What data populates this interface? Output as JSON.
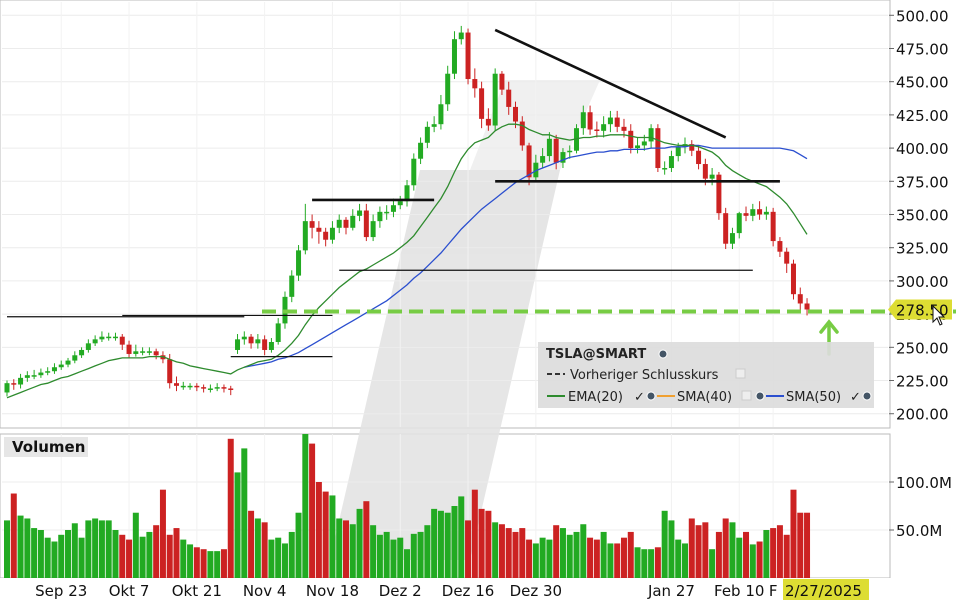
{
  "chart_data": {
    "type": "candlestick",
    "ticker_label": "TSLA@SMART",
    "price_axis": {
      "ylim": [
        190,
        510
      ],
      "ticks": [
        "500.00",
        "475.00",
        "450.00",
        "425.00",
        "400.00",
        "375.00",
        "350.00",
        "325.00",
        "300.00",
        "275.00",
        "250.00",
        "225.00",
        "200.00"
      ],
      "tick_values": [
        500,
        475,
        450,
        425,
        400,
        375,
        350,
        325,
        300,
        275,
        250,
        225,
        200
      ],
      "last_price_label": "278.50",
      "last_price": 278.5
    },
    "volume_axis": {
      "title": "Volumen",
      "ylim": [
        0,
        150
      ],
      "ticks": [
        "100.0M",
        "50.0M"
      ],
      "tick_values": [
        100,
        50
      ]
    },
    "x_axis": {
      "tick_labels": [
        "Sep 23",
        "Okt 7",
        "Okt 21",
        "Nov 4",
        "Nov 18",
        "Dez 2",
        "Dez 16",
        "Dez 30",
        "Jan 27",
        "Feb 10",
        "F"
      ],
      "tick_index": [
        8,
        18,
        28,
        38,
        48,
        58,
        68,
        78,
        98,
        108,
        113
      ],
      "current_date": "2/27/2025"
    },
    "legend": {
      "title": "TSLA@SMART",
      "items": [
        {
          "label": "Vorheriger Schlusskurs",
          "color": "#333333",
          "style": "dashed"
        },
        {
          "label": "EMA(20)",
          "color": "#2e8b2e",
          "style": "solid"
        },
        {
          "label": "SMA(40)",
          "color": "#f0a030",
          "style": "solid"
        },
        {
          "label": "SMA(50)",
          "color": "#2b4fcf",
          "style": "solid"
        }
      ]
    },
    "colors": {
      "up": "#22aa22",
      "down": "#cc2222",
      "previous_close_line": "#77cc44",
      "arrow": "#77cc44",
      "badge": "#dddd33"
    },
    "candles": {
      "open": [
        216,
        223,
        222,
        227,
        229,
        229,
        231,
        232,
        235,
        237,
        240,
        244,
        248,
        253,
        256,
        258,
        258,
        258,
        252,
        245,
        247,
        247,
        247,
        244,
        241,
        223,
        221,
        221,
        221,
        220,
        219,
        219,
        220,
        219,
        248,
        256,
        258,
        253,
        256,
        248,
        254,
        268,
        288,
        304,
        323,
        345,
        340,
        337,
        331,
        340,
        346,
        340,
        349,
        353,
        333,
        345,
        352,
        352,
        357,
        360,
        372,
        392,
        404,
        416,
        418,
        433,
        456,
        482,
        487,
        452,
        445,
        422,
        417,
        456,
        444,
        431,
        420,
        402,
        378,
        389,
        394,
        407,
        389,
        397,
        398,
        415,
        427,
        414,
        413,
        418,
        423,
        416,
        413,
        400,
        402,
        405,
        415,
        385,
        385,
        394,
        401,
        403,
        398,
        388,
        377,
        380,
        351,
        328,
        336,
        351,
        349,
        354,
        350,
        352,
        330,
        322,
        313,
        290,
        283
      ],
      "close": [
        223,
        222,
        227,
        229,
        229,
        231,
        232,
        235,
        237,
        240,
        244,
        248,
        253,
        256,
        258,
        258,
        258,
        252,
        245,
        247,
        247,
        247,
        244,
        241,
        223,
        221,
        221,
        221,
        220,
        219,
        219,
        220,
        219,
        218,
        256,
        258,
        253,
        256,
        248,
        254,
        268,
        288,
        304,
        323,
        345,
        340,
        337,
        331,
        340,
        346,
        340,
        349,
        353,
        333,
        345,
        352,
        352,
        357,
        360,
        372,
        392,
        404,
        416,
        418,
        433,
        456,
        482,
        487,
        452,
        445,
        422,
        417,
        456,
        444,
        431,
        420,
        402,
        378,
        389,
        394,
        407,
        389,
        397,
        398,
        415,
        427,
        414,
        413,
        418,
        423,
        416,
        413,
        400,
        402,
        405,
        415,
        385,
        385,
        394,
        401,
        403,
        398,
        388,
        377,
        380,
        351,
        328,
        336,
        351,
        349,
        354,
        350,
        352,
        330,
        322,
        313,
        290,
        283,
        278.5
      ],
      "high": [
        225,
        226,
        230,
        232,
        233,
        234,
        235,
        238,
        240,
        242,
        247,
        250,
        256,
        259,
        262,
        261,
        261,
        260,
        255,
        252,
        250,
        250,
        249,
        247,
        245,
        228,
        224,
        223,
        223,
        222,
        222,
        223,
        222,
        221,
        260,
        262,
        260,
        260,
        259,
        257,
        272,
        292,
        308,
        327,
        358,
        350,
        345,
        340,
        345,
        350,
        348,
        354,
        358,
        358,
        350,
        356,
        357,
        362,
        364,
        376,
        396,
        408,
        420,
        424,
        440,
        462,
        488,
        492,
        490,
        460,
        450,
        430,
        460,
        458,
        450,
        435,
        424,
        404,
        395,
        400,
        412,
        410,
        400,
        402,
        418,
        432,
        432,
        420,
        424,
        428,
        428,
        422,
        418,
        408,
        410,
        418,
        418,
        390,
        398,
        404,
        408,
        406,
        402,
        392,
        385,
        382,
        355,
        340,
        352,
        356,
        358,
        360,
        356,
        355,
        333,
        325,
        316,
        295,
        287
      ],
      "low": [
        213,
        218,
        219,
        224,
        226,
        227,
        229,
        230,
        233,
        235,
        238,
        242,
        246,
        251,
        254,
        255,
        255,
        248,
        242,
        243,
        244,
        244,
        241,
        238,
        219,
        217,
        218,
        218,
        217,
        216,
        216,
        217,
        216,
        214,
        245,
        252,
        249,
        249,
        244,
        246,
        252,
        264,
        284,
        300,
        320,
        332,
        328,
        326,
        328,
        336,
        335,
        338,
        345,
        330,
        330,
        340,
        346,
        348,
        354,
        356,
        368,
        388,
        400,
        412,
        414,
        428,
        452,
        478,
        448,
        438,
        415,
        413,
        413,
        440,
        425,
        415,
        398,
        372,
        376,
        385,
        390,
        384,
        385,
        392,
        396,
        410,
        410,
        408,
        408,
        412,
        412,
        408,
        396,
        396,
        398,
        400,
        382,
        380,
        382,
        390,
        396,
        394,
        384,
        372,
        372,
        346,
        324,
        324,
        332,
        345,
        345,
        346,
        346,
        326,
        318,
        306,
        286,
        278,
        274
      ]
    },
    "volume": [
      60,
      88,
      65,
      62,
      52,
      50,
      42,
      38,
      45,
      50,
      57,
      42,
      60,
      62,
      60,
      60,
      50,
      45,
      40,
      68,
      43,
      48,
      55,
      92,
      45,
      52,
      40,
      35,
      32,
      30,
      28,
      28,
      30,
      145,
      110,
      135,
      70,
      62,
      58,
      40,
      42,
      36,
      48,
      68,
      150,
      140,
      100,
      90,
      86,
      62,
      60,
      56,
      72,
      80,
      55,
      45,
      48,
      40,
      42,
      30,
      46,
      48,
      55,
      72,
      70,
      68,
      75,
      85,
      60,
      92,
      72,
      70,
      58,
      56,
      52,
      48,
      52,
      40,
      36,
      42,
      40,
      55,
      52,
      45,
      48,
      56,
      42,
      40,
      48,
      36,
      36,
      42,
      48,
      32,
      30,
      30,
      32,
      70,
      60,
      40,
      36,
      62,
      55,
      58,
      30,
      48,
      62,
      58,
      42,
      48,
      35,
      38,
      50,
      52,
      55,
      45,
      92,
      68,
      68
    ],
    "ema20": [
      212,
      214,
      216,
      218,
      220,
      222,
      223,
      225,
      227,
      228,
      230,
      232,
      234,
      236,
      238,
      240,
      241,
      242,
      242,
      242,
      242,
      243,
      243,
      243,
      241,
      239,
      238,
      236,
      235,
      234,
      233,
      232,
      231,
      230,
      233,
      235,
      237,
      239,
      240,
      241,
      244,
      248,
      253,
      259,
      267,
      274,
      280,
      285,
      290,
      295,
      299,
      303,
      307,
      309,
      312,
      315,
      318,
      321,
      325,
      329,
      334,
      341,
      348,
      355,
      362,
      371,
      382,
      392,
      399,
      404,
      406,
      408,
      413,
      416,
      418,
      418,
      417,
      414,
      412,
      410,
      410,
      408,
      407,
      406,
      407,
      408,
      408,
      409,
      409,
      410,
      410,
      410,
      409,
      408,
      408,
      408,
      406,
      404,
      403,
      402,
      402,
      402,
      401,
      399,
      397,
      393,
      387,
      383,
      380,
      377,
      375,
      373,
      371,
      367,
      363,
      358,
      351,
      343,
      335
    ],
    "sma50": [
      null,
      null,
      null,
      null,
      null,
      null,
      null,
      null,
      null,
      null,
      null,
      null,
      null,
      null,
      null,
      null,
      null,
      null,
      null,
      null,
      null,
      null,
      null,
      null,
      null,
      null,
      null,
      null,
      null,
      null,
      null,
      null,
      null,
      null,
      null,
      235,
      236,
      237,
      238,
      239,
      241,
      242,
      244,
      246,
      249,
      252,
      255,
      258,
      261,
      264,
      267,
      270,
      273,
      276,
      279,
      282,
      285,
      289,
      293,
      297,
      302,
      306,
      311,
      316,
      321,
      327,
      333,
      339,
      344,
      349,
      354,
      358,
      362,
      366,
      370,
      374,
      377,
      380,
      383,
      385,
      387,
      389,
      391,
      393,
      394,
      395,
      396,
      397,
      397,
      398,
      398,
      399,
      399,
      399,
      399,
      400,
      400,
      400,
      401,
      401,
      401,
      402,
      402,
      401,
      400,
      400,
      400,
      400,
      400,
      400,
      400,
      400,
      400,
      400,
      400,
      399,
      398,
      395,
      392
    ],
    "previous_close": 277,
    "annotations": {
      "trendlines": [
        {
          "from": [
            72,
            489
          ],
          "to": [
            106,
            408
          ]
        },
        {
          "from": [
            72,
            375
          ],
          "to": [
            114,
            375
          ]
        },
        {
          "from": [
            45,
            361
          ],
          "to": [
            63,
            361
          ]
        },
        {
          "from": [
            49,
            308
          ],
          "to": [
            110,
            308
          ]
        },
        {
          "from": [
            0,
            273
          ],
          "to": [
            35,
            273
          ]
        },
        {
          "from": [
            17,
            274
          ],
          "to": [
            48,
            274
          ]
        },
        {
          "from": [
            33,
            243
          ],
          "to": [
            48,
            243
          ]
        }
      ]
    }
  }
}
